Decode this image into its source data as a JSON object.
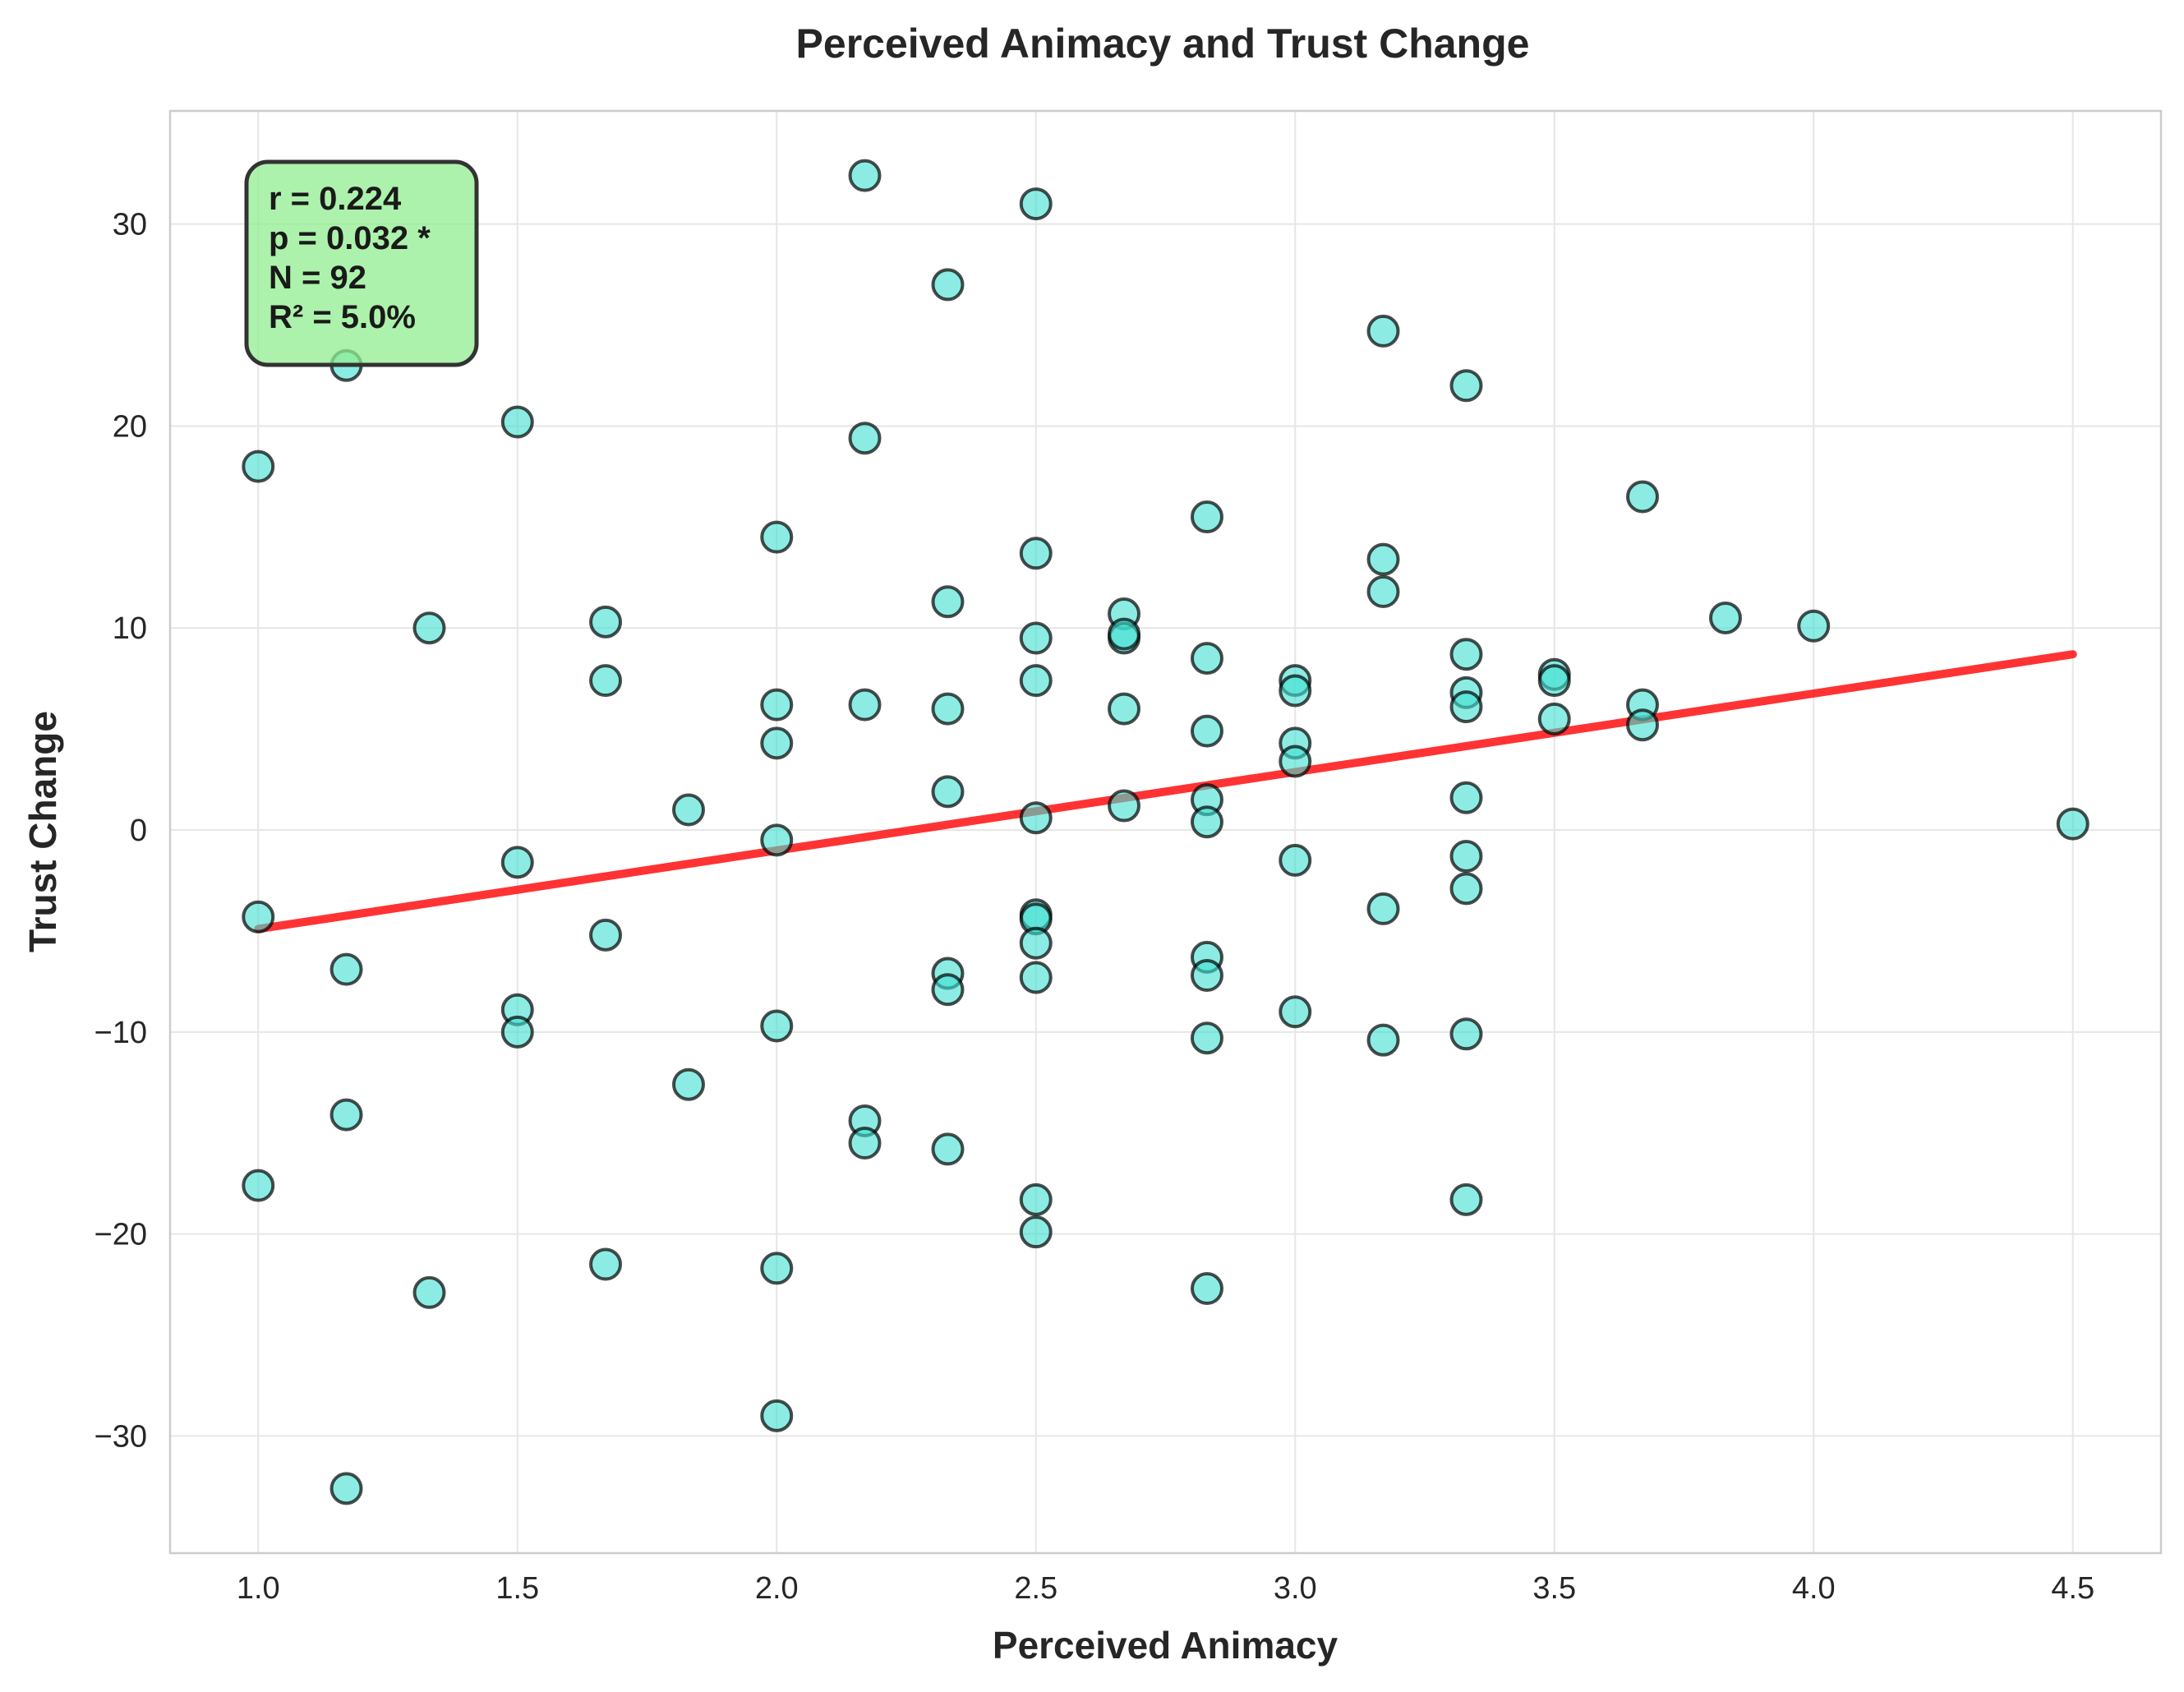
{
  "chart_data": {
    "type": "scatter",
    "title": "Perceived Animacy and Trust Change",
    "xlabel": "Perceived Animacy",
    "ylabel": "Trust Change",
    "xlim": [
      0.83,
      4.67
    ],
    "ylim": [
      -35.8,
      35.6
    ],
    "x_ticks": [
      1.0,
      1.5,
      2.0,
      2.5,
      3.0,
      3.5,
      4.0,
      4.5
    ],
    "x_tick_labels": [
      "1.0",
      "1.5",
      "2.0",
      "2.5",
      "3.0",
      "3.5",
      "4.0",
      "4.5"
    ],
    "y_ticks": [
      -30,
      -20,
      -10,
      0,
      10,
      20,
      30
    ],
    "y_tick_labels": [
      "−30",
      "−20",
      "−10",
      "0",
      "10",
      "20",
      "30"
    ],
    "grid": true,
    "point_color": "#40E0D0",
    "point_edge_color": "#000000",
    "trend_color": "#FF0000",
    "stats_box_color": "#90EE90",
    "stats": [
      "r = 0.224",
      "p = 0.032 *",
      "N = 92",
      "R² = 5.0%"
    ],
    "trend_line": {
      "x": [
        1.0,
        4.5
      ],
      "y": [
        -4.9,
        8.7
      ]
    },
    "points": [
      [
        1.0,
        18.0
      ],
      [
        1.0,
        -4.3
      ],
      [
        1.0,
        -17.6
      ],
      [
        1.17,
        23.0
      ],
      [
        1.17,
        -6.9
      ],
      [
        1.17,
        -14.1
      ],
      [
        1.17,
        -32.6
      ],
      [
        1.33,
        10.0
      ],
      [
        1.33,
        -22.9
      ],
      [
        1.5,
        20.2
      ],
      [
        1.5,
        -1.6
      ],
      [
        1.5,
        -8.9
      ],
      [
        1.5,
        -10.0
      ],
      [
        1.67,
        10.3
      ],
      [
        1.67,
        7.4
      ],
      [
        1.67,
        -5.2
      ],
      [
        1.67,
        -21.5
      ],
      [
        1.83,
        1.0
      ],
      [
        1.83,
        -12.6
      ],
      [
        2.0,
        14.5
      ],
      [
        2.0,
        6.2
      ],
      [
        2.0,
        4.3
      ],
      [
        2.0,
        -0.5
      ],
      [
        2.0,
        -9.7
      ],
      [
        2.0,
        -21.7
      ],
      [
        2.0,
        -29.0
      ],
      [
        2.17,
        32.4
      ],
      [
        2.17,
        19.4
      ],
      [
        2.17,
        6.2
      ],
      [
        2.17,
        -14.4
      ],
      [
        2.17,
        -15.5
      ],
      [
        2.33,
        27.0
      ],
      [
        2.33,
        11.3
      ],
      [
        2.33,
        6.0
      ],
      [
        2.33,
        1.9
      ],
      [
        2.33,
        -7.1
      ],
      [
        2.33,
        -7.9
      ],
      [
        2.33,
        -15.8
      ],
      [
        2.5,
        31.0
      ],
      [
        2.5,
        13.7
      ],
      [
        2.5,
        9.5
      ],
      [
        2.5,
        7.4
      ],
      [
        2.5,
        0.6
      ],
      [
        2.5,
        -4.2
      ],
      [
        2.5,
        -4.4
      ],
      [
        2.5,
        -5.6
      ],
      [
        2.5,
        -7.3
      ],
      [
        2.5,
        -18.3
      ],
      [
        2.5,
        -19.9
      ],
      [
        2.67,
        10.7
      ],
      [
        2.67,
        9.5
      ],
      [
        2.67,
        9.7
      ],
      [
        2.67,
        6.0
      ],
      [
        2.67,
        1.2
      ],
      [
        2.83,
        15.5
      ],
      [
        2.83,
        8.5
      ],
      [
        2.83,
        4.9
      ],
      [
        2.83,
        1.5
      ],
      [
        2.83,
        0.4
      ],
      [
        2.83,
        -6.3
      ],
      [
        2.83,
        -7.2
      ],
      [
        2.83,
        -10.3
      ],
      [
        2.83,
        -22.7
      ],
      [
        3.0,
        7.4
      ],
      [
        3.0,
        6.9
      ],
      [
        3.0,
        4.3
      ],
      [
        3.0,
        3.4
      ],
      [
        3.0,
        -1.5
      ],
      [
        3.0,
        -9.0
      ],
      [
        3.17,
        24.7
      ],
      [
        3.17,
        13.4
      ],
      [
        3.17,
        11.8
      ],
      [
        3.17,
        -3.9
      ],
      [
        3.17,
        -10.4
      ],
      [
        3.33,
        22.0
      ],
      [
        3.33,
        8.7
      ],
      [
        3.33,
        6.8
      ],
      [
        3.33,
        6.1
      ],
      [
        3.33,
        1.6
      ],
      [
        3.33,
        -1.3
      ],
      [
        3.33,
        -2.9
      ],
      [
        3.33,
        -10.1
      ],
      [
        3.33,
        -18.3
      ],
      [
        3.5,
        7.7
      ],
      [
        3.5,
        7.4
      ],
      [
        3.5,
        5.5
      ],
      [
        3.67,
        16.5
      ],
      [
        3.67,
        6.2
      ],
      [
        3.67,
        5.2
      ],
      [
        3.83,
        10.5
      ],
      [
        4.0,
        10.1
      ],
      [
        4.5,
        0.3
      ]
    ]
  }
}
